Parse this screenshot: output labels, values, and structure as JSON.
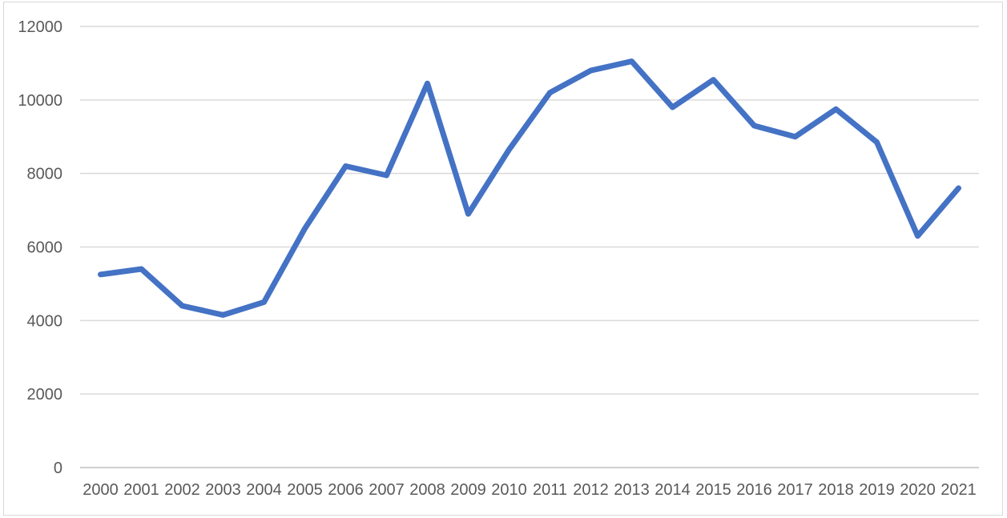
{
  "chart": {
    "title": "",
    "accent_color": "#4472C4",
    "gridline_color": "#D9D9D9",
    "axis_line_color": "#BFBFBF",
    "border_color": "#D8D8D8",
    "label_color": "#595959",
    "background_color": "#FFFFFF"
  },
  "chart_data": {
    "type": "line",
    "title": "",
    "xlabel": "",
    "ylabel": "",
    "categories": [
      "2000",
      "2001",
      "2002",
      "2003",
      "2004",
      "2005",
      "2006",
      "2007",
      "2008",
      "2009",
      "2010",
      "2011",
      "2012",
      "2013",
      "2014",
      "2015",
      "2016",
      "2017",
      "2018",
      "2019",
      "2020",
      "2021"
    ],
    "series": [
      {
        "name": "",
        "color": "#4472C4",
        "values": [
          5250,
          5400,
          4400,
          4150,
          4500,
          6500,
          8200,
          7950,
          10450,
          6900,
          8650,
          10200,
          10800,
          11050,
          9800,
          10550,
          9300,
          9000,
          9750,
          8850,
          6300,
          7600
        ]
      }
    ],
    "ylim": [
      0,
      12000
    ],
    "y_ticks": [
      0,
      2000,
      4000,
      6000,
      8000,
      10000,
      12000
    ],
    "y_tick_labels": [
      "0",
      "2000",
      "4000",
      "6000",
      "8000",
      "10000",
      "12000"
    ],
    "grid": true,
    "legend": false
  }
}
